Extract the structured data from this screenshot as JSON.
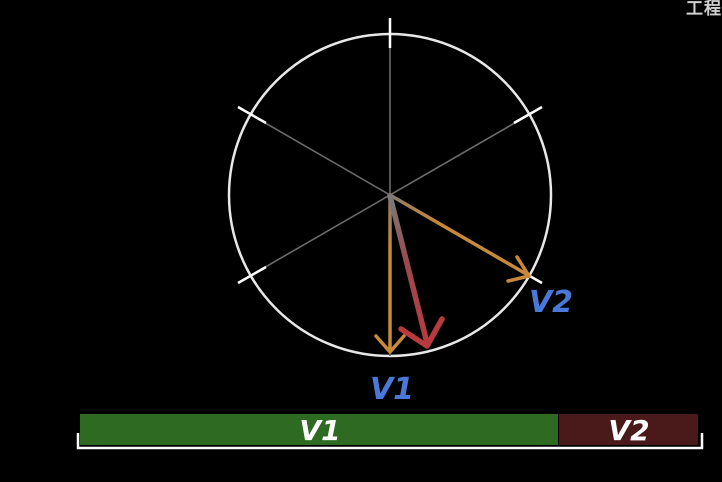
{
  "corner_text": "工程",
  "diagram": {
    "labels": {
      "v1": "V1",
      "v2": "V2"
    },
    "bar": {
      "segment_v1_label": "V1",
      "segment_v2_label": "V2"
    },
    "colors": {
      "background": "#000000",
      "circle": "#e8e8e8",
      "spokes": "#6b6b6b",
      "ticks": "#ffffff",
      "vector_v1": "#c8893a",
      "vector_v2": "#c8893a",
      "resultant_vector": "#b83a3e",
      "label_blue": "#4a78d8",
      "bar_v1_fill": "#2e6a22",
      "bar_v2_fill": "#4a1a1a",
      "bar_text": "#ffffff",
      "bracket": "#ffffff"
    }
  }
}
